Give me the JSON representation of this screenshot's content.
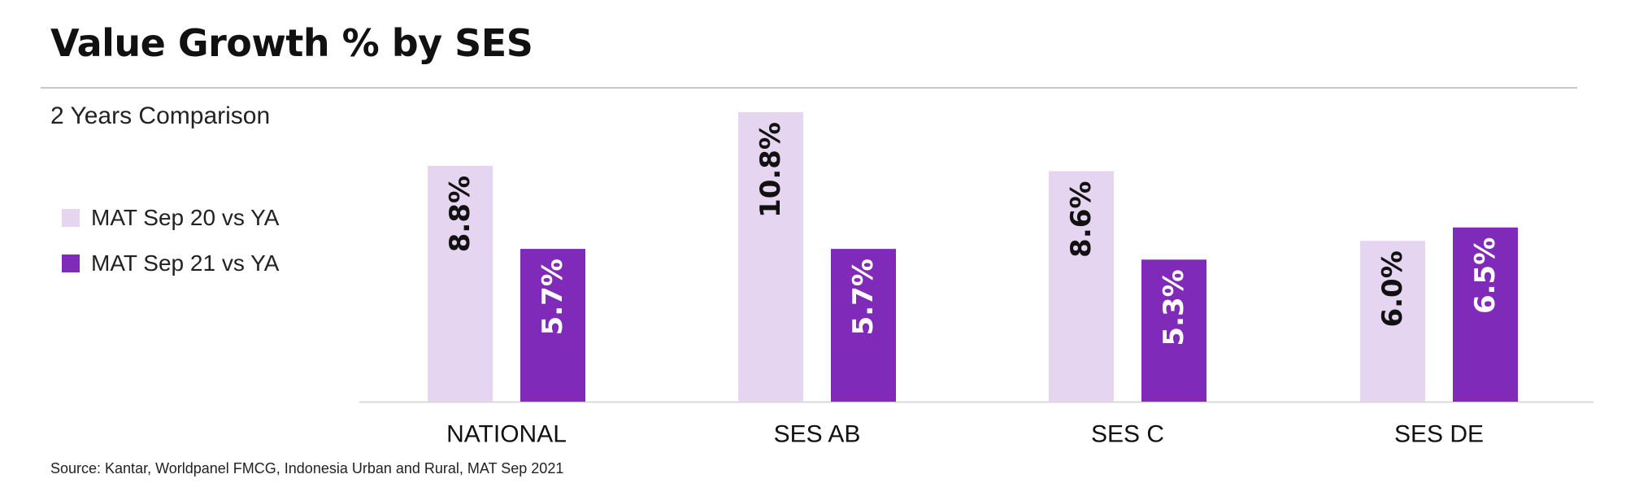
{
  "title": "Value Growth % by SES",
  "subtitle": "2 Years Comparison",
  "source": "Source: Kantar, Worldpanel FMCG, Indonesia Urban and Rural, MAT Sep 2021",
  "colors": {
    "series1": "#e6d5f0",
    "series2": "#7f2ab8",
    "label_dark": "#111111",
    "label_light": "#ffffff",
    "axis": "#d8d8d8"
  },
  "chart_data": {
    "type": "bar",
    "title": "Value Growth % by SES",
    "subtitle": "2 Years Comparison",
    "categories": [
      "NATIONAL",
      "SES AB",
      "SES C",
      "SES DE"
    ],
    "series": [
      {
        "name": "MAT Sep 20 vs YA",
        "values": [
          8.8,
          10.8,
          8.6,
          6.0
        ],
        "labels": [
          "8.8%",
          "10.8%",
          "8.6%",
          "6.0%"
        ]
      },
      {
        "name": "MAT Sep 21 vs YA",
        "values": [
          5.7,
          5.7,
          5.3,
          6.5
        ],
        "labels": [
          "5.7%",
          "5.7%",
          "5.3%",
          "6.5%"
        ]
      }
    ],
    "xlabel": "",
    "ylabel": "",
    "ylim": [
      0,
      10.8
    ],
    "grid": false,
    "legend_position": "left"
  }
}
